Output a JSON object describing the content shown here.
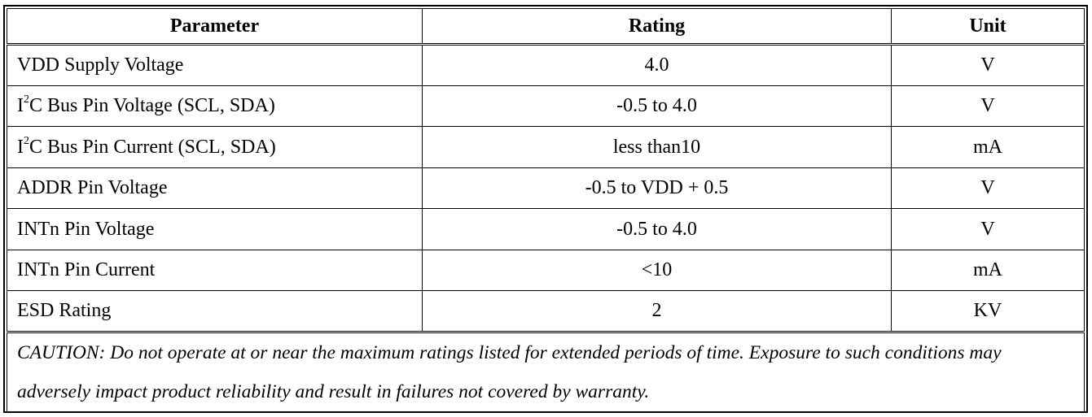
{
  "table": {
    "headers": {
      "parameter": "Parameter",
      "rating": "Rating",
      "unit": "Unit"
    },
    "rows": [
      {
        "param_prefix": "VDD Supply Voltage",
        "param_sup": "",
        "param_suffix": "",
        "rating": "4.0",
        "unit": "V"
      },
      {
        "param_prefix": "I",
        "param_sup": "2",
        "param_suffix": "C Bus Pin Voltage (SCL, SDA)",
        "rating": "-0.5 to 4.0",
        "unit": "V"
      },
      {
        "param_prefix": "I",
        "param_sup": "2",
        "param_suffix": "C Bus Pin Current (SCL, SDA)",
        "rating": "less than10",
        "unit": "mA"
      },
      {
        "param_prefix": "ADDR Pin Voltage",
        "param_sup": "",
        "param_suffix": "",
        "rating": "-0.5 to VDD + 0.5",
        "unit": "V"
      },
      {
        "param_prefix": "INTn Pin Voltage",
        "param_sup": "",
        "param_suffix": "",
        "rating": "-0.5 to 4.0",
        "unit": "V"
      },
      {
        "param_prefix": "INTn Pin Current",
        "param_sup": "",
        "param_suffix": "",
        "rating": "<10",
        "unit": "mA"
      },
      {
        "param_prefix": "ESD Rating",
        "param_sup": "",
        "param_suffix": "",
        "rating": "2",
        "unit": "KV"
      }
    ],
    "caution": "CAUTION: Do not operate at or near the maximum ratings listed for extended periods of time. Exposure to such conditions may adversely impact product reliability and result in failures not covered by warranty."
  }
}
